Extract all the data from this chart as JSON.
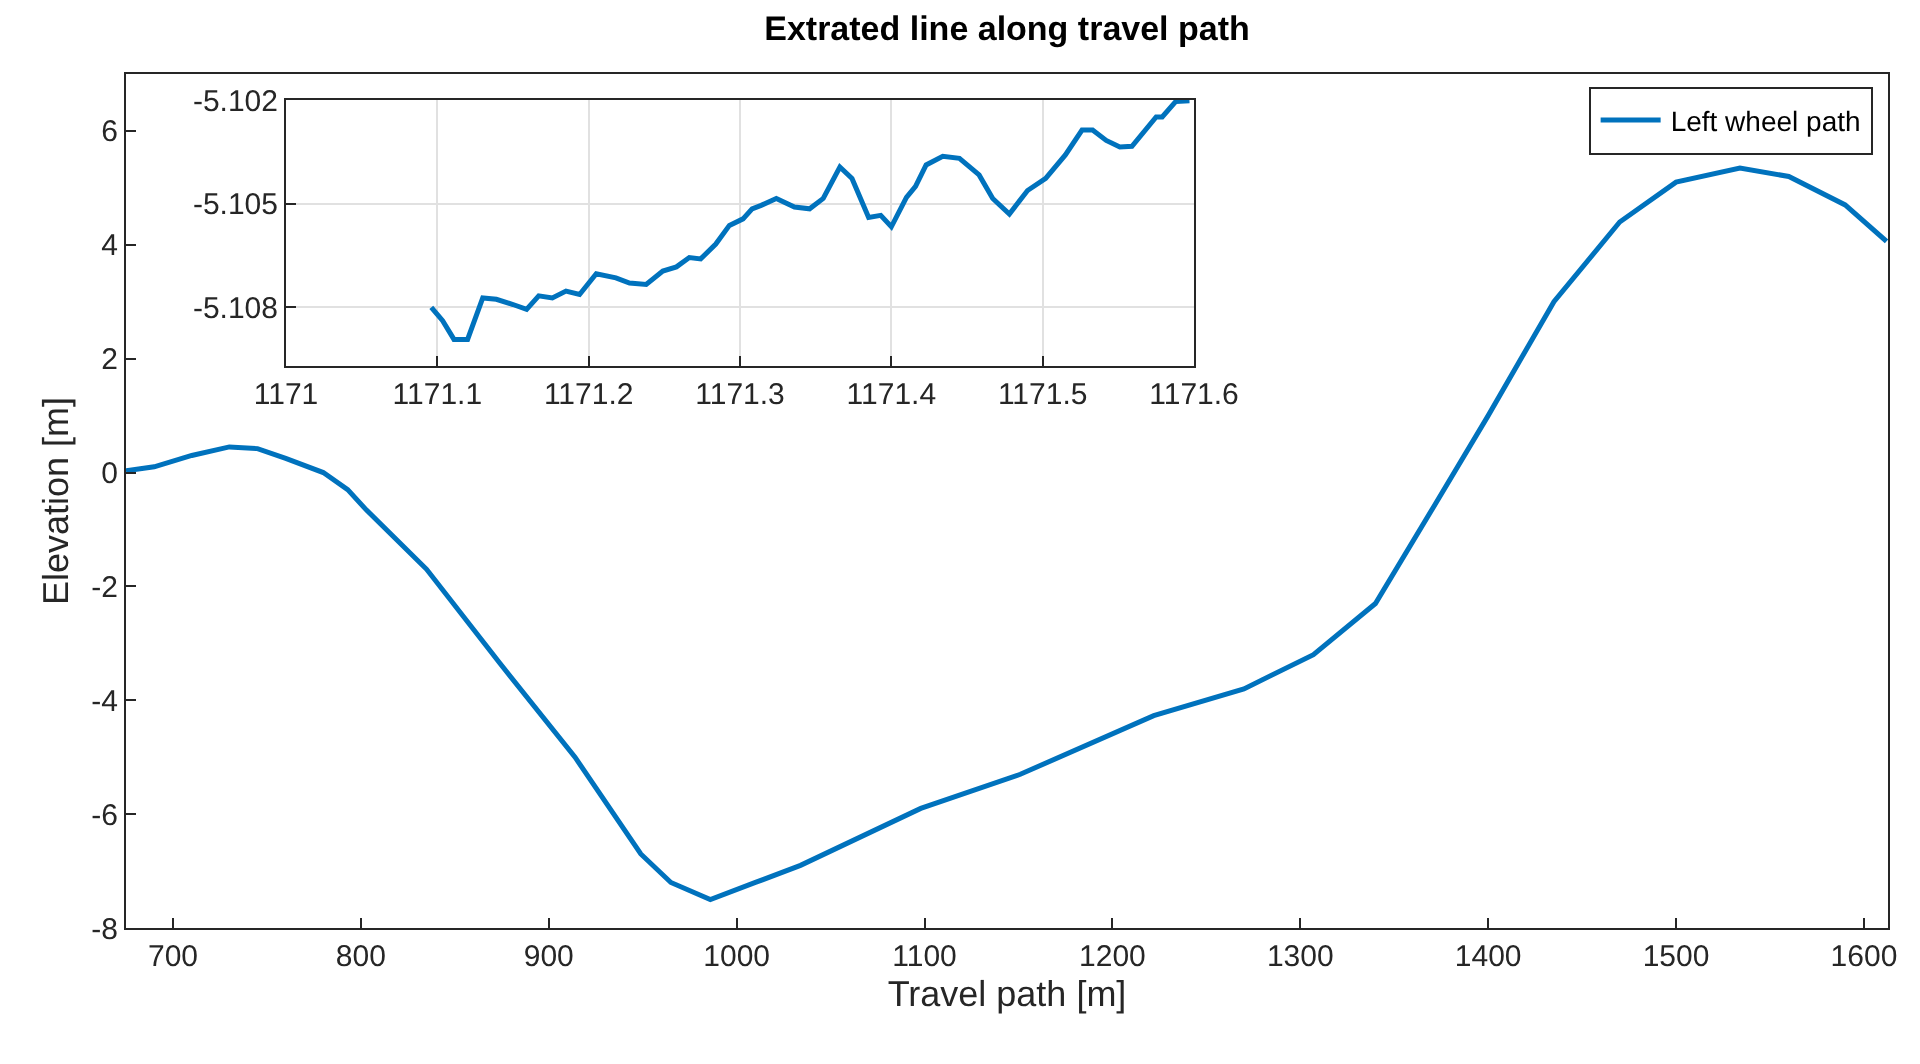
{
  "chart_data": [
    {
      "type": "line",
      "title": "Extrated line along travel path",
      "xlabel": "Travel path [m]",
      "ylabel": "Elevation [m]",
      "xlim": [
        675,
        1612.8
      ],
      "ylim": [
        -8,
        7
      ],
      "xticks": [
        700,
        800,
        900,
        1000,
        1100,
        1200,
        1300,
        1400,
        1500,
        1600
      ],
      "yticks": [
        -8,
        -6,
        -4,
        -2,
        0,
        2,
        4,
        6
      ],
      "grid": false,
      "legend": "top right",
      "marker": "none",
      "line_style": "solid",
      "series": [
        {
          "name": "Left wheel path",
          "color": "#0072bd",
          "x": [
            675,
            690,
            710,
            730,
            745,
            760,
            780,
            793,
            803,
            835,
            874,
            914,
            949,
            965,
            986,
            1010,
            1034,
            1098,
            1151,
            1222,
            1270,
            1307,
            1340,
            1371,
            1400,
            1435,
            1470,
            1500,
            1534,
            1560,
            1590,
            1612
          ],
          "values": [
            0.03,
            0.1,
            0.3,
            0.45,
            0.42,
            0.25,
            0.0,
            -0.3,
            -0.66,
            -1.7,
            -3.35,
            -5.0,
            -6.7,
            -7.2,
            -7.5,
            -7.2,
            -6.9,
            -5.9,
            -5.3,
            -4.27,
            -3.8,
            -3.2,
            -2.3,
            -0.6,
            1.0,
            3.0,
            4.4,
            5.1,
            5.35,
            5.2,
            4.7,
            4.06
          ]
        }
      ]
    },
    {
      "type": "line",
      "xlim": [
        1171,
        1171.6
      ],
      "ylim": [
        -5.1097,
        -5.102
      ],
      "xticks": [
        1171,
        1171.1,
        1171.2,
        1171.3,
        1171.4,
        1171.5,
        1171.6
      ],
      "yticks": [
        -5.108,
        -5.105,
        -5.102
      ],
      "grid": true,
      "marker": "none",
      "line_style": "solid",
      "series": [
        {
          "color": "#0072bd",
          "x": [
            1171.096,
            1171.1035,
            1171.111,
            1171.12,
            1171.13,
            1171.139,
            1171.15,
            1171.159,
            1171.167,
            1171.176,
            1171.185,
            1171.194,
            1171.205,
            1171.218,
            1171.227,
            1171.238,
            1171.249,
            1171.258,
            1171.2665,
            1171.274,
            1171.284,
            1171.293,
            1171.302,
            1171.308,
            1171.314,
            1171.324,
            1171.336,
            1171.346,
            1171.355,
            1171.366,
            1171.374,
            1171.385,
            1171.393,
            1171.4,
            1171.41,
            1171.416,
            1171.423,
            1171.434,
            1171.445,
            1171.458,
            1171.467,
            1171.478,
            1171.49,
            1171.502,
            1171.515,
            1171.526,
            1171.533,
            1171.542,
            1171.551,
            1171.559,
            1171.575,
            1171.579,
            1171.588,
            1171.597
          ],
          "values": [
            -5.108,
            -5.10839,
            -5.10893,
            -5.10893,
            -5.10773,
            -5.10777,
            -5.10792,
            -5.10806,
            -5.10767,
            -5.10773,
            -5.10753,
            -5.10763,
            -5.10703,
            -5.10715,
            -5.1073,
            -5.10734,
            -5.10695,
            -5.10683,
            -5.10656,
            -5.1066,
            -5.10617,
            -5.10563,
            -5.10544,
            -5.10515,
            -5.10505,
            -5.10485,
            -5.1051,
            -5.10515,
            -5.10485,
            -5.10394,
            -5.10427,
            -5.1054,
            -5.10534,
            -5.10567,
            -5.10482,
            -5.1045,
            -5.10388,
            -5.10363,
            -5.10369,
            -5.10417,
            -5.10485,
            -5.1053,
            -5.10462,
            -5.10427,
            -5.10359,
            -5.10287,
            -5.10287,
            -5.10317,
            -5.10336,
            -5.10334,
            -5.10249,
            -5.10249,
            -5.10204,
            -5.10202
          ]
        }
      ]
    }
  ]
}
